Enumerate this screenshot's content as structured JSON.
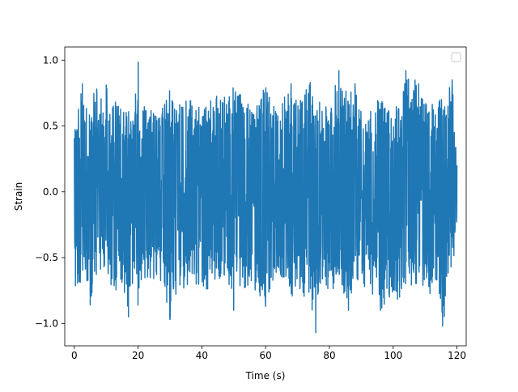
{
  "chart_data": {
    "type": "line",
    "title": "",
    "xlabel": "Time (s)",
    "ylabel": "Strain",
    "xlim": [
      -3.0,
      122.9
    ],
    "ylim": [
      -1.17,
      1.1
    ],
    "x_ticks": [
      0,
      20,
      40,
      60,
      80,
      100,
      120
    ],
    "y_ticks": [
      -1.0,
      -0.5,
      0.0,
      0.5,
      1.0
    ],
    "x_tick_labels": [
      "0",
      "20",
      "40",
      "60",
      "80",
      "100",
      "120"
    ],
    "y_tick_labels": [
      "−1.0",
      "−0.5",
      "0.0",
      "0.5",
      "1.0"
    ],
    "grid": false,
    "legend": {
      "placement": "top-right",
      "entries": []
    },
    "series": [
      {
        "color": "#1f77b4",
        "sample_interval": 0.01,
        "x_start": 0,
        "x_end": 120,
        "envelope": {
          "x": [
            0,
            0.3,
            0.5,
            1.2,
            2.5,
            3.0,
            5.0,
            6.0,
            7.0,
            8.0,
            10.0,
            13.0,
            15.0,
            17.0,
            19.0,
            20.0,
            21.0,
            24.0,
            26.0,
            28.0,
            30.0,
            32.0,
            36.0,
            40.0,
            44.0,
            48.0,
            50.0,
            54.0,
            57.0,
            60.0,
            63.0,
            66.0,
            68.0,
            70.0,
            72.0,
            74.0,
            75.7,
            77.0,
            80.0,
            83.0,
            86.0,
            88.0,
            90.0,
            93.0,
            96.0,
            100.0,
            102.0,
            104.0,
            108.0,
            111.0,
            114.0,
            115.5,
            117.0,
            118.5,
            120.0
          ],
          "max": [
            0.41,
            0.63,
            0.64,
            0.63,
            0.82,
            0.7,
            0.65,
            0.75,
            0.78,
            0.7,
            0.81,
            0.7,
            0.62,
            0.61,
            0.7,
            1.0,
            0.7,
            0.62,
            0.64,
            0.73,
            0.83,
            0.65,
            0.7,
            0.63,
            0.73,
            0.72,
            0.81,
            0.7,
            0.65,
            0.82,
            0.62,
            0.73,
            0.82,
            0.7,
            0.75,
            0.83,
            0.78,
            0.68,
            0.63,
            0.92,
            0.73,
            0.82,
            0.6,
            0.65,
            0.74,
            0.61,
            0.7,
            0.92,
            0.82,
            0.65,
            0.73,
            0.7,
            0.79,
            0.85,
            0.2
          ],
          "min": [
            -0.4,
            -0.75,
            -0.65,
            -0.73,
            -0.66,
            -0.6,
            -0.86,
            -0.77,
            -0.68,
            -0.63,
            -0.67,
            -0.75,
            -0.7,
            -0.95,
            -0.63,
            -0.86,
            -0.7,
            -0.73,
            -0.65,
            -0.76,
            -0.97,
            -0.8,
            -0.7,
            -0.78,
            -0.7,
            -0.68,
            -0.9,
            -0.72,
            -0.8,
            -0.87,
            -0.7,
            -0.68,
            -0.86,
            -0.74,
            -0.8,
            -0.83,
            -1.07,
            -0.74,
            -0.82,
            -0.66,
            -0.9,
            -0.72,
            -0.7,
            -0.82,
            -0.9,
            -0.78,
            -0.84,
            -0.7,
            -0.72,
            -0.8,
            -0.72,
            -1.02,
            -0.85,
            -0.6,
            -0.35
          ]
        },
        "spikes": [
          {
            "x": 2.5,
            "y": 0.82
          },
          {
            "x": 7.0,
            "y": 0.78
          },
          {
            "x": 10.0,
            "y": 0.81
          },
          {
            "x": 20.0,
            "y": 1.0
          },
          {
            "x": 30.0,
            "y": 0.83
          },
          {
            "x": 50.0,
            "y": 0.81
          },
          {
            "x": 60.0,
            "y": 0.82
          },
          {
            "x": 68.0,
            "y": 0.82
          },
          {
            "x": 74.0,
            "y": 0.83
          },
          {
            "x": 83.0,
            "y": 0.92
          },
          {
            "x": 88.0,
            "y": 0.82
          },
          {
            "x": 104.0,
            "y": 0.92
          },
          {
            "x": 108.0,
            "y": 0.82
          },
          {
            "x": 118.5,
            "y": 0.85
          },
          {
            "x": 5.0,
            "y": -0.86
          },
          {
            "x": 17.0,
            "y": -0.95
          },
          {
            "x": 20.0,
            "y": -0.86
          },
          {
            "x": 30.0,
            "y": -0.97
          },
          {
            "x": 50.0,
            "y": -0.9
          },
          {
            "x": 60.0,
            "y": -0.87
          },
          {
            "x": 75.7,
            "y": -1.07
          },
          {
            "x": 86.0,
            "y": -0.9
          },
          {
            "x": 96.0,
            "y": -0.9
          },
          {
            "x": 115.5,
            "y": -1.02
          }
        ]
      }
    ]
  }
}
